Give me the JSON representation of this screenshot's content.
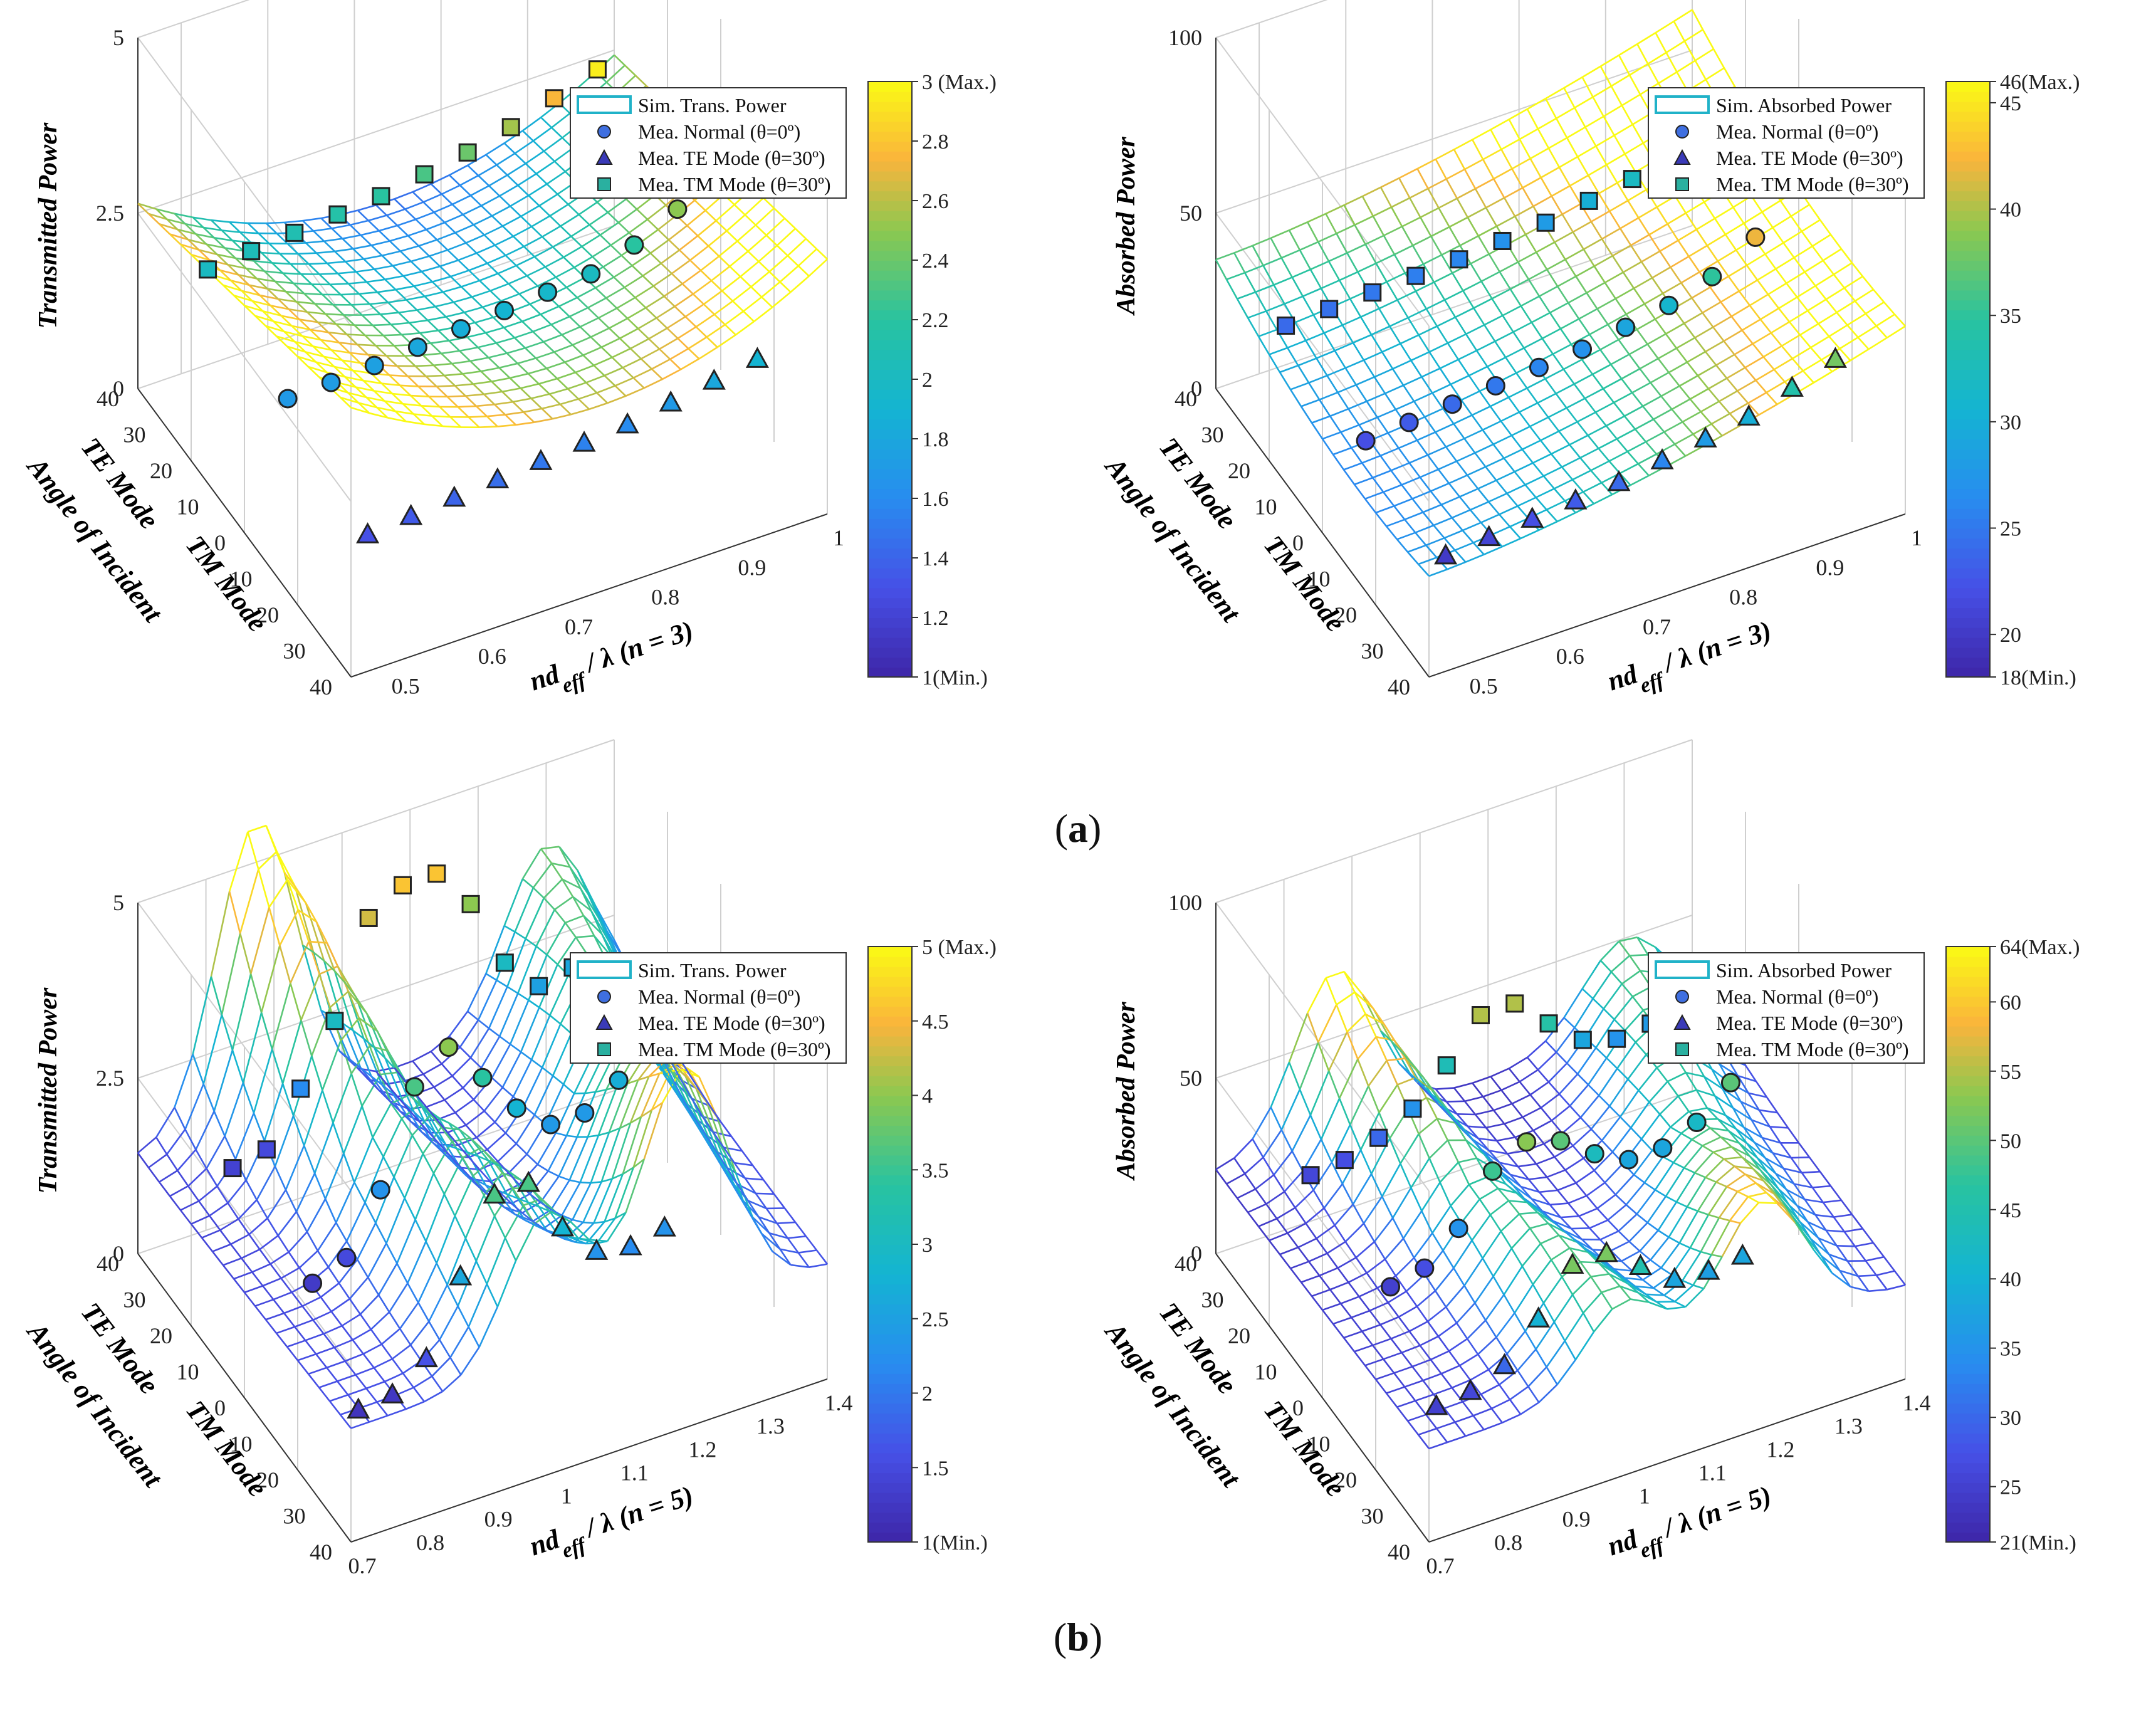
{
  "captions": {
    "a_open": "(",
    "a_letter": "a",
    "a_close": ")",
    "b_open": "(",
    "b_letter": "b",
    "b_close": ")"
  },
  "chart_data": [
    {
      "id": "a-left",
      "type": "surface3d",
      "zlabel": "Transmitted Power",
      "xlabel": "nd_eff / λ (n = 3)",
      "xlabel_parts": [
        "nd",
        "eff",
        " / λ (n = 3)"
      ],
      "ylabel_lines": [
        "TE Mode",
        "Angle of Incident",
        "TM Mode"
      ],
      "x_range": [
        0.45,
        1.0
      ],
      "x_ticks": [
        "0.5",
        "0.6",
        "0.7",
        "0.8",
        "0.9",
        "1"
      ],
      "x_tick_values": [
        0.5,
        0.6,
        0.7,
        0.8,
        0.9,
        1.0
      ],
      "y_ticks": [
        "40",
        "30",
        "20",
        "10",
        "0",
        "10",
        "20",
        "30",
        "40"
      ],
      "z_range": [
        0,
        5
      ],
      "z_ticks": [
        "0",
        "2.5",
        "5"
      ],
      "z_tick_values": [
        0,
        2.5,
        5
      ],
      "surface": {
        "kind": "valley",
        "base": 2.2,
        "amp": 0.9,
        "tilt": 1.0
      },
      "cmin": 1,
      "cmax": 3,
      "colorbar_ticks": [
        "1(Min.)",
        "1.2",
        "1.4",
        "1.6",
        "1.8",
        "2",
        "2.2",
        "2.4",
        "2.6",
        "2.8",
        "3 (Max.)"
      ],
      "colorbar_tick_values": [
        1,
        1.2,
        1.4,
        1.6,
        1.8,
        2,
        2.2,
        2.4,
        2.6,
        2.8,
        3
      ],
      "legend": [
        "Sim. Trans. Power",
        "Mea. Normal (θ=0º)",
        "Mea. TE Mode (θ=30º)",
        "Mea. TM Mode (θ=30º)"
      ],
      "series": [
        {
          "name": "Mea. TE Mode (θ=30º)",
          "marker": "triangle",
          "angle": -30,
          "x": [
            0.5,
            0.55,
            0.6,
            0.65,
            0.7,
            0.75,
            0.8,
            0.85,
            0.9,
            0.95
          ],
          "z": [
            1.3,
            1.35,
            1.4,
            1.45,
            1.5,
            1.55,
            1.6,
            1.7,
            1.8,
            1.9
          ]
        },
        {
          "name": "Mea. Normal (θ=0º)",
          "marker": "circle",
          "angle": 0,
          "x": [
            0.5,
            0.55,
            0.6,
            0.65,
            0.7,
            0.75,
            0.8,
            0.85,
            0.9,
            0.95
          ],
          "z": [
            1.7,
            1.72,
            1.75,
            1.8,
            1.85,
            1.9,
            1.95,
            2.0,
            2.2,
            2.5
          ]
        },
        {
          "name": "Mea. TM Mode (θ=30º)",
          "marker": "square",
          "angle": 30,
          "x": [
            0.5,
            0.55,
            0.6,
            0.65,
            0.7,
            0.75,
            0.8,
            0.85,
            0.9,
            0.95
          ],
          "z": [
            2.0,
            2.05,
            2.1,
            2.15,
            2.2,
            2.3,
            2.4,
            2.55,
            2.75,
            2.95
          ]
        }
      ]
    },
    {
      "id": "a-right",
      "type": "surface3d",
      "zlabel": "Absorbed Power",
      "xlabel": "nd_eff / λ (n = 3)",
      "xlabel_parts": [
        "nd",
        "eff",
        " / λ (n = 3)"
      ],
      "ylabel_lines": [
        "TE Mode",
        "Angle of Incident",
        "TM Mode"
      ],
      "x_range": [
        0.45,
        1.0
      ],
      "x_ticks": [
        "0.5",
        "0.6",
        "0.7",
        "0.8",
        "0.9",
        "1"
      ],
      "x_tick_values": [
        0.5,
        0.6,
        0.7,
        0.8,
        0.9,
        1.0
      ],
      "y_ticks": [
        "40",
        "30",
        "20",
        "10",
        "0",
        "10",
        "20",
        "30",
        "40"
      ],
      "z_range": [
        0,
        100
      ],
      "z_ticks": [
        "0",
        "50",
        "100"
      ],
      "z_tick_values": [
        0,
        50,
        100
      ],
      "surface": {
        "kind": "ramp",
        "base": 20,
        "amp": 45,
        "tilt": 10
      },
      "cmin": 18,
      "cmax": 46,
      "colorbar_ticks": [
        "18(Min.)",
        "20",
        "25",
        "30",
        "35",
        "40",
        "45",
        "46(Max.)"
      ],
      "colorbar_tick_values": [
        18,
        20,
        25,
        30,
        35,
        40,
        45,
        46
      ],
      "legend": [
        "Sim. Absorbed Power",
        "Mea. Normal (θ=0º)",
        "Mea. TE Mode (θ=30º)",
        "Mea. TM Mode (θ=30º)"
      ],
      "series": [
        {
          "name": "Mea. TE Mode (θ=30º)",
          "marker": "triangle",
          "angle": -30,
          "x": [
            0.5,
            0.55,
            0.6,
            0.65,
            0.7,
            0.75,
            0.8,
            0.85,
            0.9,
            0.95
          ],
          "z": [
            20,
            21,
            22,
            23,
            24,
            26,
            28,
            30,
            34,
            38
          ]
        },
        {
          "name": "Mea. Normal (θ=0º)",
          "marker": "circle",
          "angle": 0,
          "x": [
            0.5,
            0.55,
            0.6,
            0.65,
            0.7,
            0.75,
            0.8,
            0.85,
            0.9,
            0.95
          ],
          "z": [
            22,
            23,
            24,
            25,
            26,
            27,
            29,
            31,
            35,
            42
          ]
        },
        {
          "name": "Mea. TM Mode (θ=30º)",
          "marker": "square",
          "angle": 30,
          "x": [
            0.5,
            0.55,
            0.6,
            0.65,
            0.7,
            0.75,
            0.8,
            0.85,
            0.9,
            0.95
          ],
          "z": [
            24,
            24.5,
            25,
            25.5,
            26,
            27,
            28,
            30,
            32,
            35
          ]
        }
      ]
    },
    {
      "id": "b-left",
      "type": "surface3d",
      "zlabel": "Transmitted Power",
      "xlabel": "nd_eff / λ (n = 5)",
      "xlabel_parts": [
        "nd",
        "eff",
        " / λ (n = 5)"
      ],
      "ylabel_lines": [
        "TE Mode",
        "Angle of Incident",
        "TM Mode"
      ],
      "x_range": [
        0.7,
        1.4
      ],
      "x_ticks": [
        "0.7",
        "0.8",
        "0.9",
        "1",
        "1.1",
        "1.2",
        "1.3",
        "1.4"
      ],
      "x_tick_values": [
        0.7,
        0.8,
        0.9,
        1.0,
        1.1,
        1.2,
        1.3,
        1.4
      ],
      "y_ticks": [
        "40",
        "30",
        "20",
        "10",
        "0",
        "10",
        "20",
        "30",
        "40"
      ],
      "z_range": [
        0,
        5
      ],
      "z_ticks": [
        "0",
        "2.5",
        "5"
      ],
      "z_tick_values": [
        0,
        2.5,
        5
      ],
      "surface": {
        "kind": "peaks",
        "base": 1.5,
        "amp": 3.5,
        "tilt": 0.6
      },
      "cmin": 1,
      "cmax": 5,
      "colorbar_ticks": [
        "1(Min.)",
        "1.5",
        "2",
        "2.5",
        "3",
        "3.5",
        "4",
        "4.5",
        "5 (Max.)"
      ],
      "colorbar_tick_values": [
        1,
        1.5,
        2,
        2.5,
        3,
        3.5,
        4,
        4.5,
        5
      ],
      "legend": [
        "Sim. Trans. Power",
        "Mea. Normal (θ=0º)",
        "Mea. TE Mode (θ=30º)",
        "Mea. TM Mode (θ=30º)"
      ],
      "series": [
        {
          "name": "Mea. TE Mode (θ=30º)",
          "marker": "triangle",
          "angle": -30,
          "x": [
            0.75,
            0.8,
            0.85,
            0.9,
            0.95,
            1.0,
            1.05,
            1.1,
            1.15,
            1.2
          ],
          "z": [
            1.2,
            1.25,
            1.6,
            2.6,
            3.6,
            3.6,
            2.8,
            2.3,
            2.2,
            2.3
          ]
        },
        {
          "name": "Mea. Normal (θ=0º)",
          "marker": "circle",
          "angle": 0,
          "x": [
            0.8,
            0.85,
            0.9,
            0.95,
            1.0,
            1.05,
            1.1,
            1.15,
            1.2,
            1.25,
            1.3
          ],
          "z": [
            1.3,
            1.5,
            2.3,
            3.6,
            4.0,
            3.4,
            2.8,
            2.4,
            2.4,
            2.7,
            3.6
          ]
        },
        {
          "name": "Mea. TM Mode (θ=30º)",
          "marker": "square",
          "angle": 30,
          "x": [
            0.8,
            0.85,
            0.9,
            0.95,
            1.0,
            1.05,
            1.1,
            1.15,
            1.2,
            1.25,
            1.3
          ],
          "z": [
            1.4,
            1.5,
            2.2,
            3.0,
            4.3,
            4.6,
            4.6,
            4.0,
            3.0,
            2.5,
            2.6
          ]
        }
      ]
    },
    {
      "id": "b-right",
      "type": "surface3d",
      "zlabel": "Absorbed Power",
      "xlabel": "nd_eff / λ (n = 5)",
      "xlabel_parts": [
        "nd",
        "eff",
        " / λ (n = 5)"
      ],
      "ylabel_lines": [
        "TE Mode",
        "Angle of Incident",
        "TM Mode"
      ],
      "x_range": [
        0.7,
        1.4
      ],
      "x_ticks": [
        "0.7",
        "0.8",
        "0.9",
        "1",
        "1.1",
        "1.2",
        "1.3",
        "1.4"
      ],
      "x_tick_values": [
        0.7,
        0.8,
        0.9,
        1.0,
        1.1,
        1.2,
        1.3,
        1.4
      ],
      "y_ticks": [
        "40",
        "30",
        "20",
        "10",
        "0",
        "10",
        "20",
        "30",
        "40"
      ],
      "z_range": [
        0,
        100
      ],
      "z_ticks": [
        "0",
        "50",
        "100"
      ],
      "z_tick_values": [
        0,
        50,
        100
      ],
      "surface": {
        "kind": "peaks",
        "base": 25,
        "amp": 38,
        "tilt": 8
      },
      "cmin": 21,
      "cmax": 64,
      "colorbar_ticks": [
        "21(Min.)",
        "25",
        "30",
        "35",
        "40",
        "45",
        "50",
        "55",
        "60",
        "64(Max.)"
      ],
      "colorbar_tick_values": [
        21,
        25,
        30,
        35,
        40,
        45,
        50,
        55,
        60,
        64
      ],
      "legend": [
        "Sim. Absorbed Power",
        "Mea. Normal (θ=0º)",
        "Mea. TE Mode (θ=30º)",
        "Mea. TM Mode (θ=30º)"
      ],
      "series": [
        {
          "name": "Mea. TE Mode (θ=30º)",
          "marker": "triangle",
          "angle": -30,
          "x": [
            0.75,
            0.8,
            0.85,
            0.9,
            0.95,
            1.0,
            1.05,
            1.1,
            1.15,
            1.2
          ],
          "z": [
            25,
            26,
            30,
            40,
            52,
            52,
            45,
            38,
            37,
            38
          ]
        },
        {
          "name": "Mea. Normal (θ=0º)",
          "marker": "circle",
          "angle": 0,
          "x": [
            0.8,
            0.85,
            0.9,
            0.95,
            1.0,
            1.05,
            1.1,
            1.15,
            1.2,
            1.25,
            1.3
          ],
          "z": [
            25,
            27,
            35,
            48,
            53,
            50,
            43,
            38,
            38,
            42,
            50
          ]
        },
        {
          "name": "Mea. TM Mode (θ=30º)",
          "marker": "square",
          "angle": 30,
          "x": [
            0.8,
            0.85,
            0.9,
            0.95,
            1.0,
            1.05,
            1.1,
            1.15,
            1.2,
            1.25,
            1.3
          ],
          "z": [
            26,
            27,
            30,
            35,
            44,
            55,
            55,
            46,
            38,
            35,
            36
          ]
        }
      ]
    }
  ]
}
